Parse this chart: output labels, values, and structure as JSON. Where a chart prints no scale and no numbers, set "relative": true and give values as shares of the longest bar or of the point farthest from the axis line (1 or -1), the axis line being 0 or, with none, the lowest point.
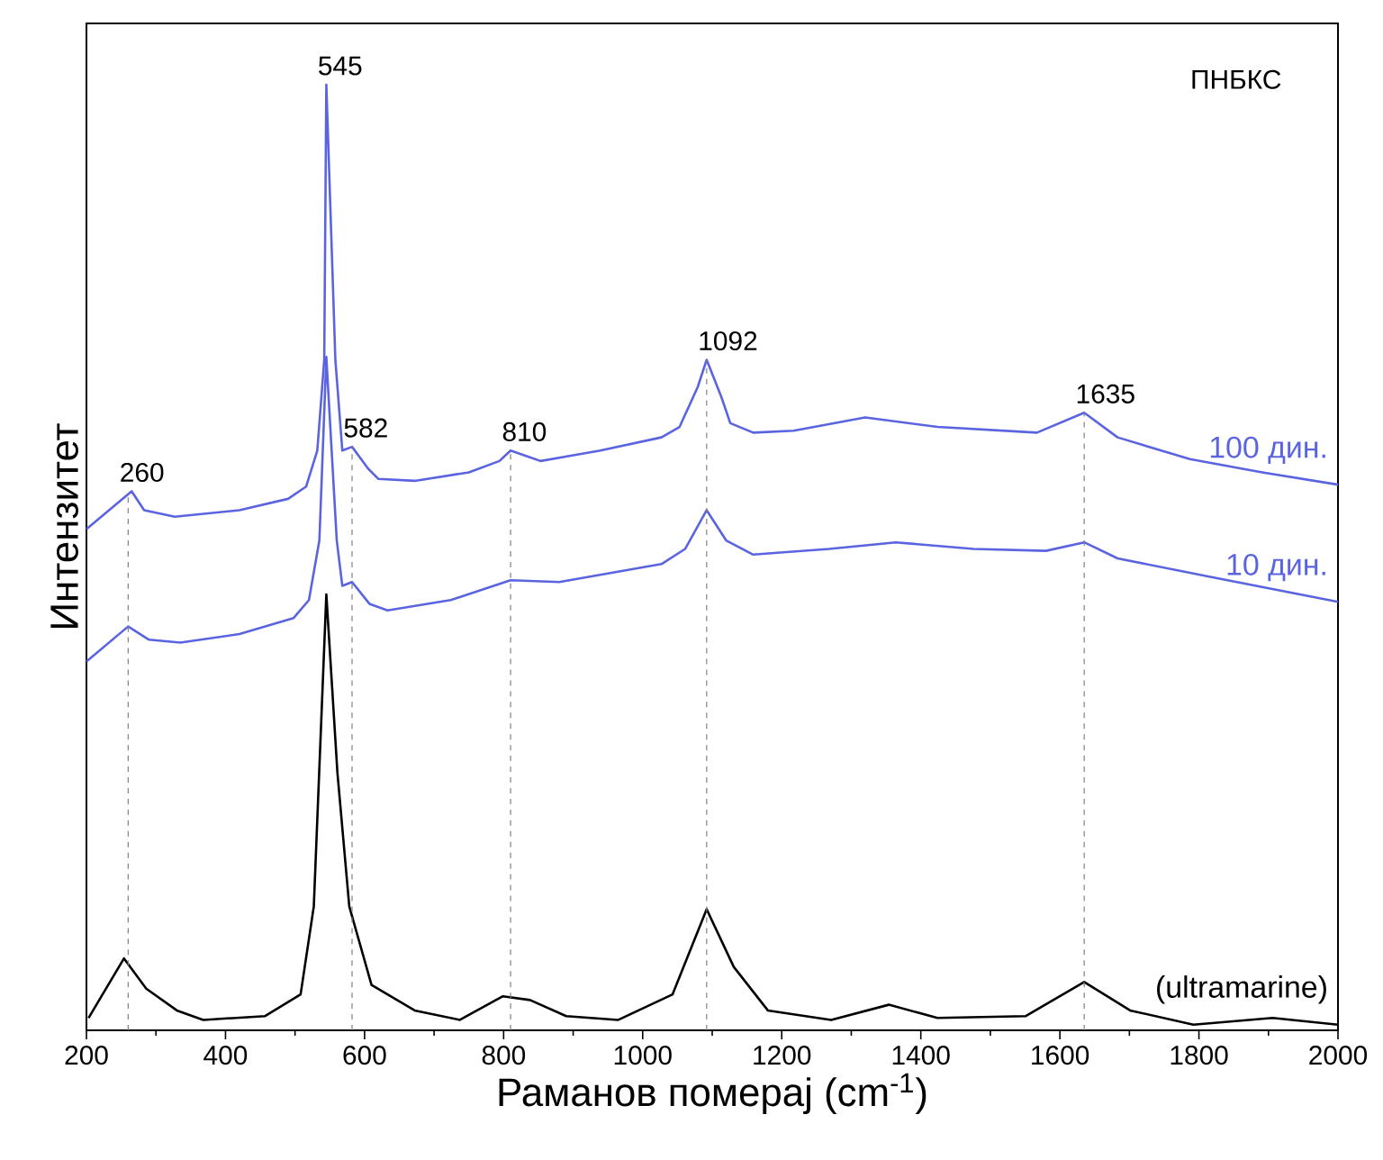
{
  "chart_data": {
    "type": "line",
    "relative": true,
    "xlabel": "Раманов померај (cm$^{-1}$)",
    "ylabel": "Интензитет",
    "xlim": [
      200,
      2000
    ],
    "xticks": [
      200,
      400,
      600,
      800,
      1000,
      1200,
      1400,
      1600,
      1800,
      2000
    ],
    "tick_labels": "x",
    "marker": "none",
    "line_style": "solid",
    "series": [
      {
        "name": "100 дин.",
        "color": "#5b64e0",
        "x": [
          200,
          265,
          283,
          327,
          420,
          490,
          516,
          532,
          542,
          545,
          558,
          568,
          582,
          605,
          620,
          672,
          750,
          794,
          810,
          853,
          939,
          1027,
          1053,
          1079,
          1092,
          1113,
          1126,
          1159,
          1217,
          1320,
          1424,
          1567,
          1635,
          1683,
          1787,
          1891,
          2000
        ],
        "values": [
          0.53,
          0.57,
          0.55,
          0.543,
          0.55,
          0.562,
          0.575,
          0.613,
          0.709,
          1.0,
          0.709,
          0.613,
          0.617,
          0.594,
          0.583,
          0.581,
          0.59,
          0.602,
          0.613,
          0.602,
          0.613,
          0.627,
          0.638,
          0.68,
          0.709,
          0.67,
          0.642,
          0.632,
          0.634,
          0.648,
          0.638,
          0.632,
          0.653,
          0.627,
          0.604,
          0.59,
          0.577
        ]
      },
      {
        "name": "10 дин.",
        "color": "#5b64e0",
        "x": [
          200,
          260,
          290,
          335,
          420,
          498,
          520,
          535,
          545,
          560,
          568,
          582,
          607,
          633,
          724,
          810,
          880,
          1027,
          1061,
          1092,
          1120,
          1159,
          1268,
          1364,
          1476,
          1580,
          1635,
          1683,
          1813,
          2000
        ],
        "values": [
          0.39,
          0.427,
          0.413,
          0.41,
          0.419,
          0.436,
          0.455,
          0.518,
          0.712,
          0.518,
          0.47,
          0.474,
          0.451,
          0.444,
          0.455,
          0.476,
          0.474,
          0.493,
          0.509,
          0.55,
          0.518,
          0.503,
          0.509,
          0.516,
          0.509,
          0.507,
          0.516,
          0.499,
          0.48,
          0.453
        ]
      },
      {
        "name": "(ultramarine)",
        "color": "#000000",
        "x": [
          203,
          254,
          286,
          330,
          368,
          457,
          508,
          527,
          545,
          561,
          578,
          610,
          672,
          737,
          799,
          838,
          890,
          965,
          1043,
          1092,
          1131,
          1180,
          1271,
          1354,
          1424,
          1551,
          1635,
          1701,
          1792,
          1906,
          2000
        ],
        "values": [
          0.013,
          0.076,
          0.044,
          0.021,
          0.011,
          0.015,
          0.038,
          0.131,
          0.461,
          0.272,
          0.131,
          0.048,
          0.021,
          0.011,
          0.036,
          0.032,
          0.015,
          0.011,
          0.038,
          0.128,
          0.067,
          0.021,
          0.011,
          0.027,
          0.013,
          0.015,
          0.051,
          0.021,
          0.006,
          0.013,
          0.006
        ]
      }
    ],
    "ref_lines": [
      {
        "axis": "x",
        "value": 260,
        "color": "#808080",
        "line_style": "dashed"
      },
      {
        "axis": "x",
        "value": 582,
        "color": "#808080",
        "line_style": "dashed"
      },
      {
        "axis": "x",
        "value": 810,
        "color": "#808080",
        "line_style": "dashed"
      },
      {
        "axis": "x",
        "value": 1092,
        "color": "#808080",
        "line_style": "dashed"
      },
      {
        "axis": "x",
        "value": 1635,
        "color": "#808080",
        "line_style": "dashed"
      }
    ],
    "annotations": [
      "ПНБКС",
      {
        "text": "260",
        "x": 260,
        "y": 0.57
      },
      {
        "text": "545",
        "x": 545,
        "y": 1.0
      },
      {
        "text": "582",
        "x": 582,
        "y": 0.617
      },
      {
        "text": "810",
        "x": 810,
        "y": 0.613
      },
      {
        "text": "1092",
        "x": 1092,
        "y": 0.709
      },
      {
        "text": "1635",
        "x": 1635,
        "y": 0.653
      }
    ]
  }
}
